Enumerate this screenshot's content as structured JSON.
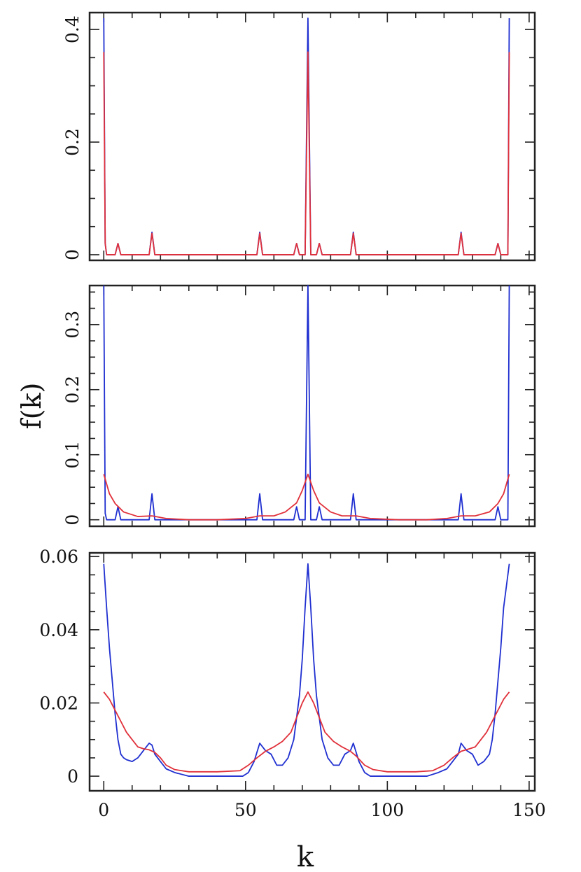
{
  "chart_data": [
    {
      "type": "line",
      "panel": "top",
      "xlim": [
        -5,
        152
      ],
      "ylim": [
        -0.01,
        0.43
      ],
      "yticks": [
        0,
        0.2,
        0.4
      ],
      "ytick_labels": [
        "0",
        "0.2",
        "0.4"
      ],
      "ylabel_orientation": "rotated",
      "grid": false,
      "series": [
        {
          "color": "#1f2fd0",
          "points": [
            [
              0,
              0.42
            ],
            [
              0.5,
              0.02
            ],
            [
              1,
              0
            ],
            [
              4,
              0
            ],
            [
              5,
              0.02
            ],
            [
              6,
              0
            ],
            [
              16,
              0
            ],
            [
              17,
              0.04
            ],
            [
              18,
              0
            ],
            [
              54,
              0
            ],
            [
              55,
              0.04
            ],
            [
              56,
              0
            ],
            [
              67,
              0
            ],
            [
              68,
              0.02
            ],
            [
              69,
              0
            ],
            [
              71,
              0
            ],
            [
              72,
              0.42
            ],
            [
              73,
              0
            ],
            [
              75,
              0
            ],
            [
              76,
              0.02
            ],
            [
              77,
              0
            ],
            [
              87,
              0
            ],
            [
              88,
              0.04
            ],
            [
              89,
              0
            ],
            [
              125,
              0
            ],
            [
              126,
              0.04
            ],
            [
              127,
              0
            ],
            [
              138,
              0
            ],
            [
              139,
              0.02
            ],
            [
              140,
              0
            ],
            [
              142.5,
              0
            ],
            [
              143,
              0.42
            ]
          ]
        },
        {
          "color": "#e0303a",
          "points": [
            [
              0,
              0.36
            ],
            [
              0.5,
              0.02
            ],
            [
              1,
              0
            ],
            [
              4,
              0
            ],
            [
              5,
              0.02
            ],
            [
              6,
              0
            ],
            [
              16,
              0
            ],
            [
              17,
              0.038
            ],
            [
              18,
              0
            ],
            [
              54,
              0
            ],
            [
              55,
              0.038
            ],
            [
              56,
              0
            ],
            [
              67,
              0
            ],
            [
              68,
              0.02
            ],
            [
              69,
              0
            ],
            [
              71,
              0
            ],
            [
              72,
              0.36
            ],
            [
              73,
              0
            ],
            [
              75,
              0
            ],
            [
              76,
              0.02
            ],
            [
              77,
              0
            ],
            [
              87,
              0
            ],
            [
              88,
              0.038
            ],
            [
              89,
              0
            ],
            [
              125,
              0
            ],
            [
              126,
              0.038
            ],
            [
              127,
              0
            ],
            [
              138,
              0
            ],
            [
              139,
              0.02
            ],
            [
              140,
              0
            ],
            [
              142.5,
              0
            ],
            [
              143,
              0.36
            ]
          ]
        }
      ]
    },
    {
      "type": "line",
      "panel": "middle",
      "xlim": [
        -5,
        152
      ],
      "ylim": [
        -0.01,
        0.36
      ],
      "yticks": [
        0,
        0.1,
        0.2,
        0.3
      ],
      "ytick_labels": [
        "0",
        "0.1",
        "0.2",
        "0.3"
      ],
      "ylabel": "f(k)",
      "ylabel_orientation": "rotated",
      "grid": false,
      "series": [
        {
          "color": "#1f2fd0",
          "points": [
            [
              0,
              0.36
            ],
            [
              0.5,
              0.01
            ],
            [
              1,
              0
            ],
            [
              4,
              0
            ],
            [
              5,
              0.02
            ],
            [
              6,
              0
            ],
            [
              16,
              0
            ],
            [
              17,
              0.04
            ],
            [
              18,
              0
            ],
            [
              54,
              0
            ],
            [
              55,
              0.04
            ],
            [
              56,
              0
            ],
            [
              67,
              0
            ],
            [
              68,
              0.02
            ],
            [
              69,
              0
            ],
            [
              71,
              0
            ],
            [
              72,
              0.36
            ],
            [
              73,
              0
            ],
            [
              75,
              0
            ],
            [
              76,
              0.02
            ],
            [
              77,
              0
            ],
            [
              87,
              0
            ],
            [
              88,
              0.04
            ],
            [
              89,
              0
            ],
            [
              125,
              0
            ],
            [
              126,
              0.04
            ],
            [
              127,
              0
            ],
            [
              138,
              0
            ],
            [
              139,
              0.02
            ],
            [
              140,
              0
            ],
            [
              142.5,
              0
            ],
            [
              143,
              0.36
            ]
          ]
        },
        {
          "color": "#e0303a",
          "points": [
            [
              0,
              0.07
            ],
            [
              2,
              0.04
            ],
            [
              4,
              0.025
            ],
            [
              7,
              0.012
            ],
            [
              12,
              0.005
            ],
            [
              17,
              0.006
            ],
            [
              22,
              0.002
            ],
            [
              30,
              0
            ],
            [
              40,
              0
            ],
            [
              50,
              0.002
            ],
            [
              55,
              0.006
            ],
            [
              60,
              0.006
            ],
            [
              64,
              0.012
            ],
            [
              68,
              0.026
            ],
            [
              70,
              0.045
            ],
            [
              72,
              0.07
            ],
            [
              74,
              0.045
            ],
            [
              76,
              0.026
            ],
            [
              80,
              0.012
            ],
            [
              84,
              0.006
            ],
            [
              89,
              0.006
            ],
            [
              94,
              0.002
            ],
            [
              104,
              0
            ],
            [
              114,
              0
            ],
            [
              121,
              0.002
            ],
            [
              126,
              0.006
            ],
            [
              131,
              0.006
            ],
            [
              136,
              0.012
            ],
            [
              139,
              0.025
            ],
            [
              141,
              0.04
            ],
            [
              143,
              0.07
            ]
          ]
        }
      ]
    },
    {
      "type": "line",
      "panel": "bottom",
      "xlim": [
        -5,
        152
      ],
      "ylim": [
        -0.004,
        0.061
      ],
      "xticks": [
        0,
        50,
        100,
        150
      ],
      "xtick_labels": [
        "0",
        "50",
        "100",
        "150"
      ],
      "yticks": [
        0,
        0.02,
        0.04,
        0.06
      ],
      "ytick_labels": [
        "0",
        "0.02",
        "0.04",
        "0.06"
      ],
      "xlabel": "k",
      "grid": false,
      "series": [
        {
          "color": "#1f2fd0",
          "points": [
            [
              0,
              0.058
            ],
            [
              1,
              0.046
            ],
            [
              2,
              0.035
            ],
            [
              3,
              0.026
            ],
            [
              4,
              0.017
            ],
            [
              5,
              0.01
            ],
            [
              6,
              0.006
            ],
            [
              7,
              0.005
            ],
            [
              8,
              0.0045
            ],
            [
              10,
              0.004
            ],
            [
              12,
              0.005
            ],
            [
              14,
              0.007
            ],
            [
              16,
              0.009
            ],
            [
              17,
              0.0085
            ],
            [
              18,
              0.006
            ],
            [
              20,
              0.004
            ],
            [
              22,
              0.002
            ],
            [
              25,
              0.001
            ],
            [
              30,
              0
            ],
            [
              40,
              0
            ],
            [
              49,
              0
            ],
            [
              51,
              0.001
            ],
            [
              53,
              0.004
            ],
            [
              55,
              0.009
            ],
            [
              57,
              0.007
            ],
            [
              59,
              0.006
            ],
            [
              61,
              0.003
            ],
            [
              63,
              0.003
            ],
            [
              65,
              0.005
            ],
            [
              67,
              0.01
            ],
            [
              69,
              0.022
            ],
            [
              70,
              0.032
            ],
            [
              71,
              0.046
            ],
            [
              72,
              0.058
            ],
            [
              73,
              0.046
            ],
            [
              74,
              0.032
            ],
            [
              75,
              0.022
            ],
            [
              77,
              0.01
            ],
            [
              79,
              0.005
            ],
            [
              81,
              0.003
            ],
            [
              83,
              0.003
            ],
            [
              85,
              0.006
            ],
            [
              87,
              0.007
            ],
            [
              88,
              0.009
            ],
            [
              90,
              0.004
            ],
            [
              92,
              0.001
            ],
            [
              94,
              0
            ],
            [
              104,
              0
            ],
            [
              114,
              0
            ],
            [
              118,
              0.001
            ],
            [
              121,
              0.002
            ],
            [
              123,
              0.004
            ],
            [
              125,
              0.006
            ],
            [
              126,
              0.009
            ],
            [
              128,
              0.007
            ],
            [
              130,
              0.006
            ],
            [
              132,
              0.003
            ],
            [
              134,
              0.004
            ],
            [
              136,
              0.006
            ],
            [
              137,
              0.01
            ],
            [
              138,
              0.017
            ],
            [
              139,
              0.026
            ],
            [
              140,
              0.035
            ],
            [
              141,
              0.046
            ],
            [
              143,
              0.058
            ]
          ]
        },
        {
          "color": "#e0303a",
          "points": [
            [
              0,
              0.023
            ],
            [
              2,
              0.021
            ],
            [
              4,
              0.018
            ],
            [
              6,
              0.015
            ],
            [
              8,
              0.012
            ],
            [
              10,
              0.01
            ],
            [
              12,
              0.008
            ],
            [
              14,
              0.0075
            ],
            [
              16,
              0.0072
            ],
            [
              18,
              0.0065
            ],
            [
              20,
              0.005
            ],
            [
              22,
              0.003
            ],
            [
              25,
              0.0018
            ],
            [
              30,
              0.0012
            ],
            [
              40,
              0.0012
            ],
            [
              48,
              0.0015
            ],
            [
              51,
              0.003
            ],
            [
              54,
              0.005
            ],
            [
              57,
              0.0068
            ],
            [
              60,
              0.008
            ],
            [
              63,
              0.0095
            ],
            [
              66,
              0.012
            ],
            [
              68,
              0.016
            ],
            [
              70,
              0.02
            ],
            [
              72,
              0.023
            ],
            [
              74,
              0.02
            ],
            [
              76,
              0.016
            ],
            [
              78,
              0.012
            ],
            [
              81,
              0.0095
            ],
            [
              84,
              0.008
            ],
            [
              87,
              0.0068
            ],
            [
              89,
              0.0055
            ],
            [
              92,
              0.003
            ],
            [
              95,
              0.0018
            ],
            [
              100,
              0.0012
            ],
            [
              110,
              0.0012
            ],
            [
              116,
              0.0015
            ],
            [
              120,
              0.003
            ],
            [
              123,
              0.005
            ],
            [
              126,
              0.0068
            ],
            [
              129,
              0.0075
            ],
            [
              131,
              0.008
            ],
            [
              133,
              0.01
            ],
            [
              135,
              0.012
            ],
            [
              137,
              0.015
            ],
            [
              139,
              0.018
            ],
            [
              141,
              0.021
            ],
            [
              143,
              0.023
            ]
          ]
        }
      ]
    }
  ]
}
